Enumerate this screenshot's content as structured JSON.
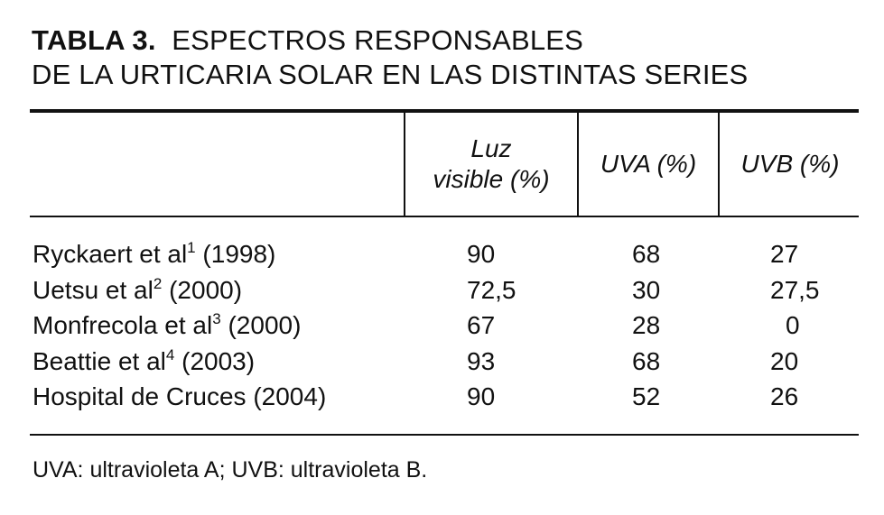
{
  "title": {
    "label": "TABLA 3.",
    "line1": "ESPECTROS RESPONSABLES",
    "line2": "DE LA URTICARIA SOLAR EN LAS DISTINTAS SERIES"
  },
  "columns": {
    "luz_line1": "Luz",
    "luz_line2": "visible (%)",
    "uva": "UVA (%)",
    "uvb": "UVB (%)"
  },
  "rows": [
    {
      "author": "Ryckaert et al",
      "ref": "1",
      "year": "(1998)",
      "luz": "90",
      "uva": "68",
      "uvb": "27"
    },
    {
      "author": "Uetsu et al",
      "ref": "2",
      "year": "(2000)",
      "luz": "72,5",
      "uva": "30",
      "uvb": "27,5"
    },
    {
      "author": "Monfrecola et al",
      "ref": "3",
      "year": "(2000)",
      "luz": "67",
      "uva": "28",
      "uvb": "0"
    },
    {
      "author": "Beattie et al",
      "ref": "4",
      "year": "(2003)",
      "luz": "93",
      "uva": "68",
      "uvb": "20"
    },
    {
      "author": "Hospital de Cruces (2004)",
      "ref": "",
      "year": "",
      "luz": "90",
      "uva": "52",
      "uvb": "26"
    }
  ],
  "footnote": "UVA: ultravioleta A; UVB: ultravioleta B."
}
